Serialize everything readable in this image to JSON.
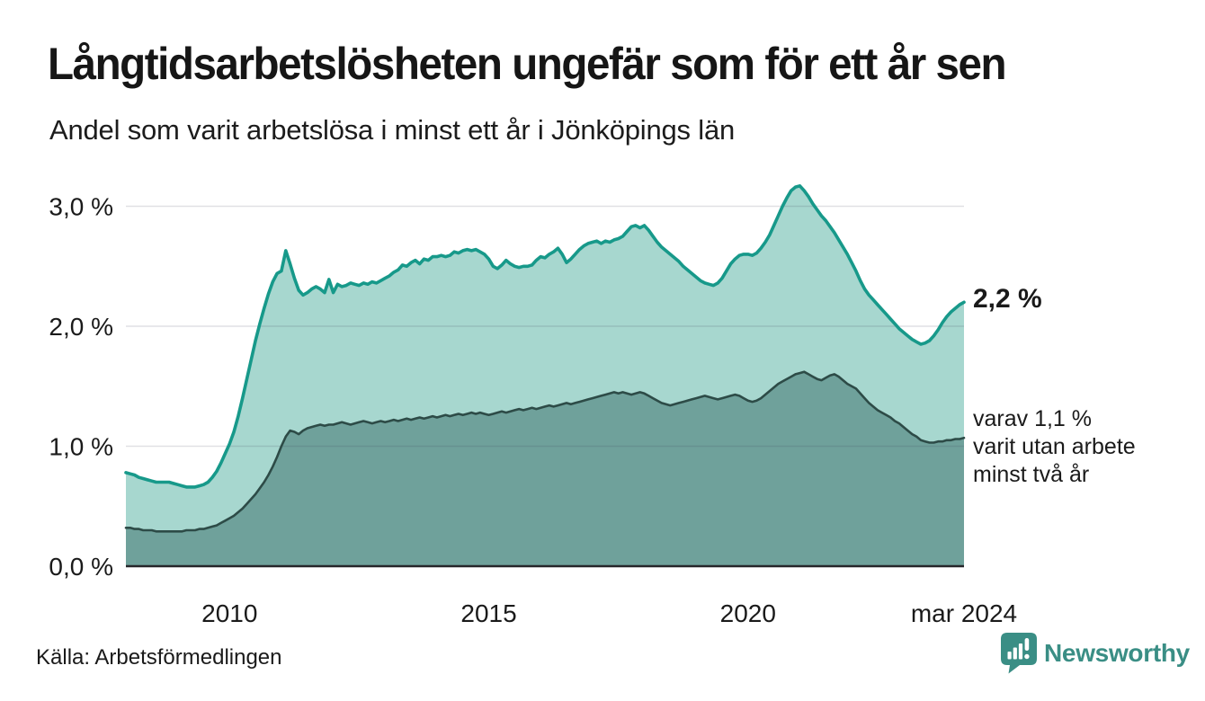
{
  "header": {
    "title": "Långtidsarbetslösheten ungefär som för ett år sen",
    "subtitle": "Andel som varit arbetslösa i minst ett år i Jönköpings län"
  },
  "chart_data": {
    "type": "area",
    "title": "Långtidsarbetslösheten ungefär som för ett år sen",
    "subtitle": "Andel som varit arbetslösa i minst ett år i Jönköpings län",
    "unit": "%",
    "x_start": "2008-01",
    "x_end": "2024-03",
    "grid": "horizontal",
    "ylim": [
      0,
      3.3
    ],
    "x_ticks": [
      {
        "label": "2010",
        "date": "2010-01"
      },
      {
        "label": "2015",
        "date": "2015-01"
      },
      {
        "label": "2020",
        "date": "2020-01"
      },
      {
        "label": "mar 2024",
        "date": "2024-03"
      }
    ],
    "y_ticks": [
      {
        "label": "0,0 %",
        "value": 0
      },
      {
        "label": "1,0 %",
        "value": 1
      },
      {
        "label": "2,0 %",
        "value": 2
      },
      {
        "label": "3,0 %",
        "value": 3
      }
    ],
    "series": [
      {
        "name": "arbetslösa minst ett år",
        "line_color": "#17998a",
        "fill_color": "#a7d7cf",
        "line_width": 3.6,
        "latest_value_label": "2,2 %",
        "values": [
          0.78,
          0.77,
          0.76,
          0.74,
          0.73,
          0.72,
          0.71,
          0.7,
          0.7,
          0.7,
          0.7,
          0.69,
          0.68,
          0.67,
          0.66,
          0.66,
          0.66,
          0.67,
          0.68,
          0.7,
          0.74,
          0.79,
          0.86,
          0.94,
          1.02,
          1.12,
          1.25,
          1.4,
          1.56,
          1.72,
          1.88,
          2.02,
          2.15,
          2.27,
          2.37,
          2.44,
          2.46,
          2.63,
          2.52,
          2.4,
          2.3,
          2.26,
          2.28,
          2.31,
          2.33,
          2.31,
          2.28,
          2.39,
          2.28,
          2.35,
          2.33,
          2.34,
          2.36,
          2.35,
          2.34,
          2.36,
          2.35,
          2.37,
          2.36,
          2.38,
          2.4,
          2.42,
          2.45,
          2.47,
          2.51,
          2.5,
          2.53,
          2.55,
          2.52,
          2.56,
          2.55,
          2.58,
          2.58,
          2.59,
          2.58,
          2.59,
          2.62,
          2.61,
          2.63,
          2.64,
          2.63,
          2.64,
          2.62,
          2.6,
          2.56,
          2.5,
          2.48,
          2.51,
          2.55,
          2.52,
          2.5,
          2.49,
          2.5,
          2.5,
          2.51,
          2.55,
          2.58,
          2.57,
          2.6,
          2.62,
          2.65,
          2.6,
          2.53,
          2.56,
          2.6,
          2.64,
          2.67,
          2.69,
          2.7,
          2.71,
          2.69,
          2.71,
          2.7,
          2.72,
          2.73,
          2.75,
          2.79,
          2.83,
          2.84,
          2.82,
          2.84,
          2.8,
          2.75,
          2.7,
          2.66,
          2.63,
          2.6,
          2.57,
          2.54,
          2.5,
          2.47,
          2.44,
          2.41,
          2.38,
          2.36,
          2.35,
          2.34,
          2.36,
          2.4,
          2.46,
          2.52,
          2.56,
          2.59,
          2.6,
          2.6,
          2.59,
          2.61,
          2.65,
          2.7,
          2.76,
          2.84,
          2.92,
          3.0,
          3.07,
          3.13,
          3.16,
          3.17,
          3.13,
          3.08,
          3.02,
          2.97,
          2.92,
          2.88,
          2.83,
          2.78,
          2.72,
          2.66,
          2.6,
          2.53,
          2.46,
          2.38,
          2.31,
          2.26,
          2.22,
          2.18,
          2.14,
          2.1,
          2.06,
          2.02,
          1.98,
          1.95,
          1.92,
          1.89,
          1.87,
          1.85,
          1.86,
          1.88,
          1.92,
          1.97,
          2.03,
          2.08,
          2.12,
          2.15,
          2.18,
          2.2
        ]
      },
      {
        "name": "varav arbetslösa minst två år",
        "line_color": "#2d4b47",
        "fill_color": "#6fa19b",
        "line_width": 2.6,
        "latest_value_label": "varav 1,1 %",
        "values": [
          0.32,
          0.32,
          0.31,
          0.31,
          0.3,
          0.3,
          0.3,
          0.29,
          0.29,
          0.29,
          0.29,
          0.29,
          0.29,
          0.29,
          0.3,
          0.3,
          0.3,
          0.31,
          0.31,
          0.32,
          0.33,
          0.34,
          0.36,
          0.38,
          0.4,
          0.42,
          0.45,
          0.48,
          0.52,
          0.56,
          0.6,
          0.65,
          0.7,
          0.76,
          0.83,
          0.91,
          1.0,
          1.08,
          1.13,
          1.12,
          1.1,
          1.13,
          1.15,
          1.16,
          1.17,
          1.18,
          1.17,
          1.18,
          1.18,
          1.19,
          1.2,
          1.19,
          1.18,
          1.19,
          1.2,
          1.21,
          1.2,
          1.19,
          1.2,
          1.21,
          1.2,
          1.21,
          1.22,
          1.21,
          1.22,
          1.23,
          1.22,
          1.23,
          1.24,
          1.23,
          1.24,
          1.25,
          1.24,
          1.25,
          1.26,
          1.25,
          1.26,
          1.27,
          1.26,
          1.27,
          1.28,
          1.27,
          1.28,
          1.27,
          1.26,
          1.27,
          1.28,
          1.29,
          1.28,
          1.29,
          1.3,
          1.31,
          1.3,
          1.31,
          1.32,
          1.31,
          1.32,
          1.33,
          1.34,
          1.33,
          1.34,
          1.35,
          1.36,
          1.35,
          1.36,
          1.37,
          1.38,
          1.39,
          1.4,
          1.41,
          1.42,
          1.43,
          1.44,
          1.45,
          1.44,
          1.45,
          1.44,
          1.43,
          1.44,
          1.45,
          1.44,
          1.42,
          1.4,
          1.38,
          1.36,
          1.35,
          1.34,
          1.35,
          1.36,
          1.37,
          1.38,
          1.39,
          1.4,
          1.41,
          1.42,
          1.41,
          1.4,
          1.39,
          1.4,
          1.41,
          1.42,
          1.43,
          1.42,
          1.4,
          1.38,
          1.37,
          1.38,
          1.4,
          1.43,
          1.46,
          1.49,
          1.52,
          1.54,
          1.56,
          1.58,
          1.6,
          1.61,
          1.62,
          1.6,
          1.58,
          1.56,
          1.55,
          1.57,
          1.59,
          1.6,
          1.58,
          1.55,
          1.52,
          1.5,
          1.48,
          1.44,
          1.4,
          1.36,
          1.33,
          1.3,
          1.28,
          1.26,
          1.24,
          1.21,
          1.19,
          1.16,
          1.13,
          1.1,
          1.08,
          1.05,
          1.04,
          1.03,
          1.03,
          1.04,
          1.04,
          1.05,
          1.05,
          1.06,
          1.06,
          1.07
        ]
      }
    ]
  },
  "annotations": {
    "latest_total": "2,2 %",
    "latest_two_years_lines": [
      "varav 1,1 %",
      "varit utan arbete",
      "minst två år"
    ]
  },
  "footer": {
    "source": "Källa: Arbetsförmedlingen",
    "brand": "Newsworthy"
  },
  "colors": {
    "accent_teal": "#17998a",
    "light_fill": "#a7d7cf",
    "dark_fill": "#6fa19b",
    "dark_line": "#2d4b47",
    "brand_teal": "#3a8e85",
    "text": "#1a1a1a",
    "gridline": "#e2e2e6",
    "axis_line": "#26262a"
  }
}
